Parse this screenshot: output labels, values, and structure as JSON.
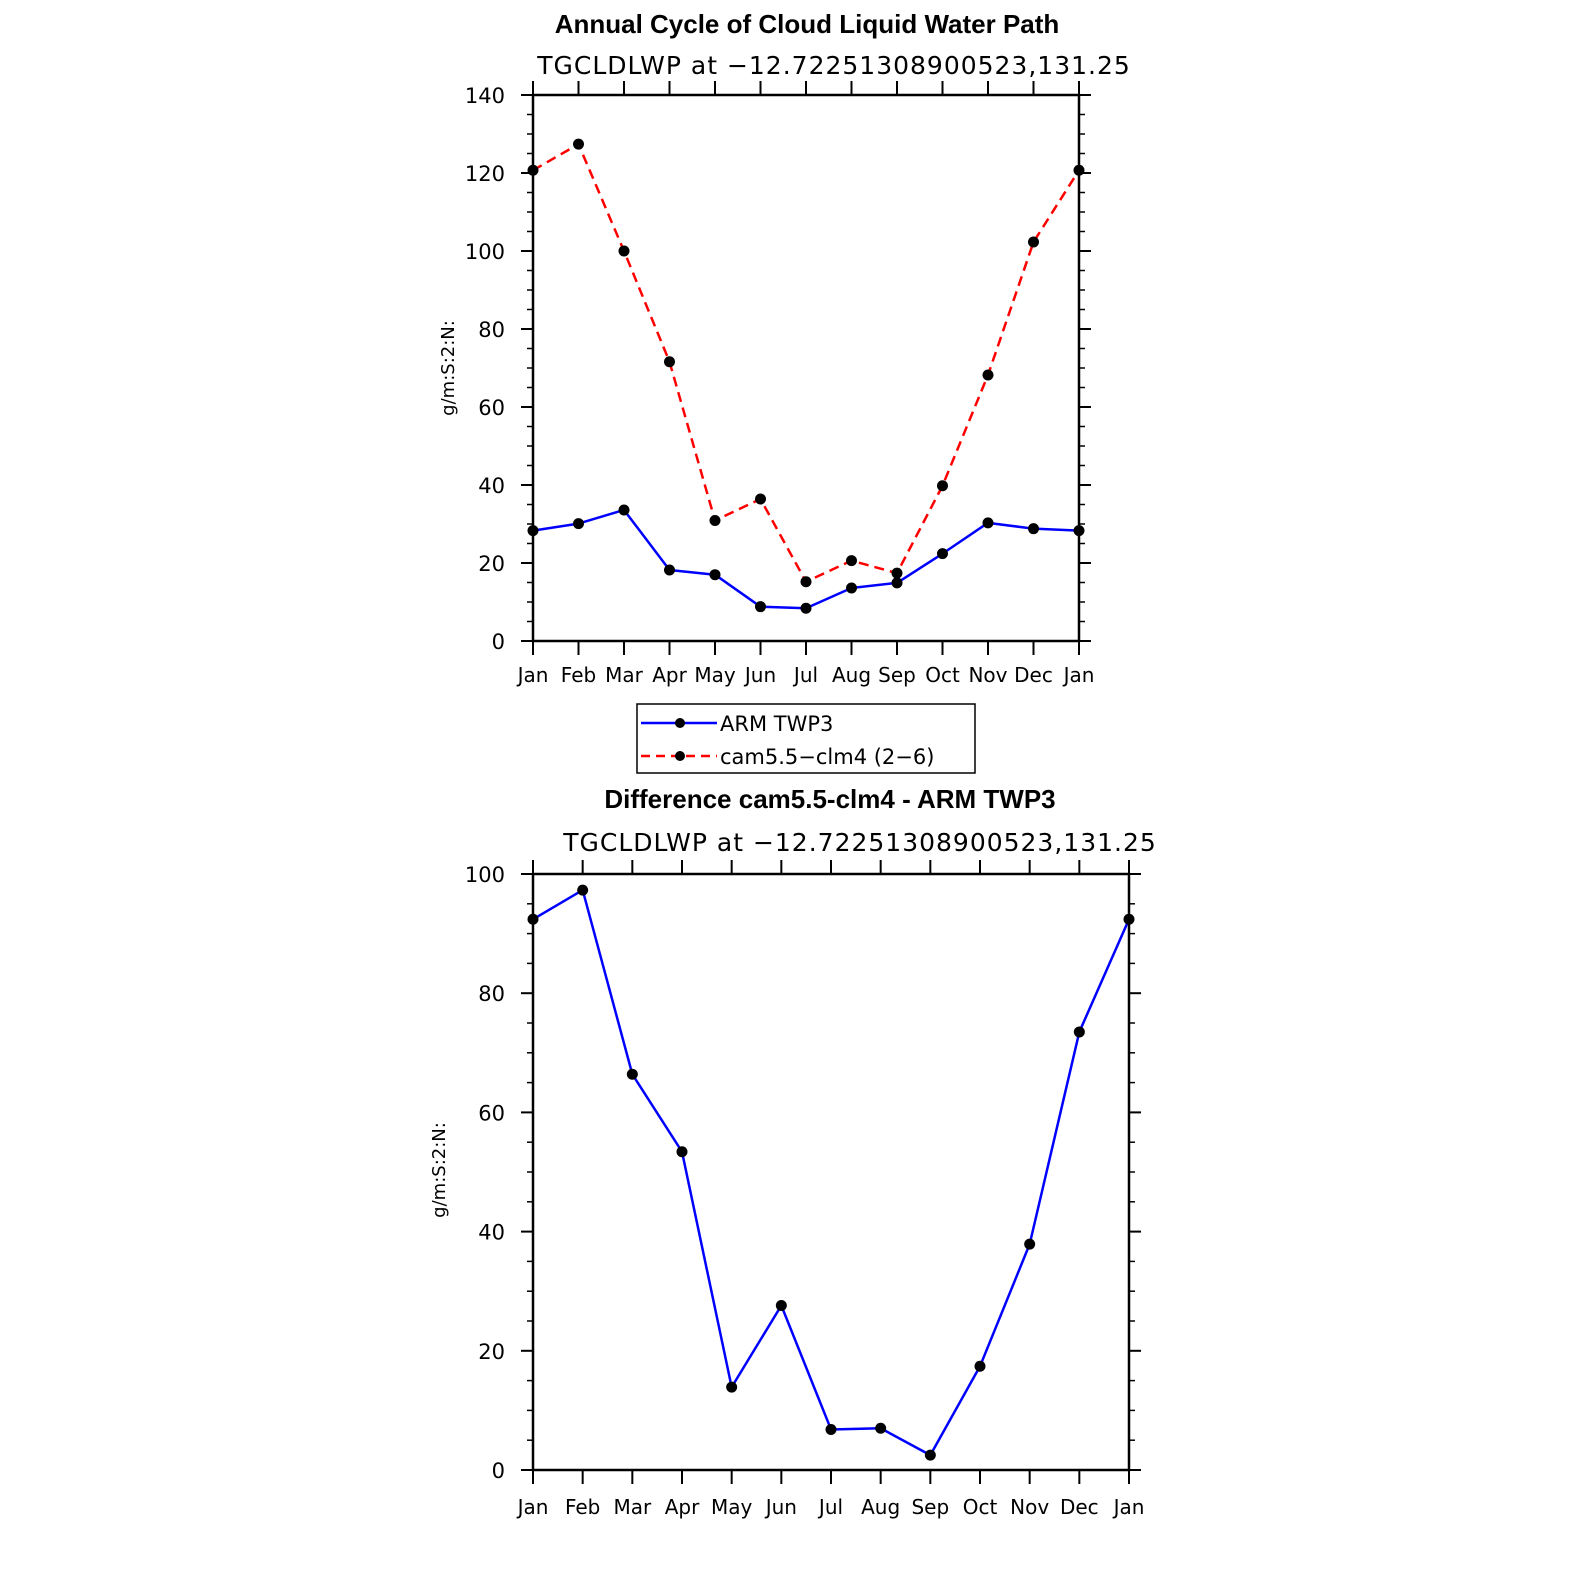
{
  "chart_data": [
    {
      "type": "line",
      "title": "Annual Cycle of Cloud Liquid Water Path",
      "subtitle": "TGCLDLWP  at  −12.72251308900523,131.25",
      "ylabel": "g/m:S:2:N:",
      "xlabel": "",
      "ylim": [
        0,
        140
      ],
      "yticks": [
        "0",
        "20",
        "40",
        "60",
        "80",
        "100",
        "120",
        "140"
      ],
      "categories": [
        "Jan",
        "Feb",
        "Mar",
        "Apr",
        "May",
        "Jun",
        "Jul",
        "Aug",
        "Sep",
        "Oct",
        "Nov",
        "Dec",
        "Jan"
      ],
      "series": [
        {
          "name": "ARM  TWP3",
          "color": "#0000ff",
          "dashed": false,
          "values": [
            28.3,
            30.1,
            33.6,
            18.2,
            17.0,
            8.8,
            8.4,
            13.6,
            14.9,
            22.4,
            30.3,
            28.8,
            28.3
          ]
        },
        {
          "name": "cam5.5−clm4 (2−6)",
          "color": "#ff0000",
          "dashed": true,
          "values": [
            120.7,
            127.4,
            100.0,
            71.6,
            30.9,
            36.4,
            15.2,
            20.6,
            17.4,
            39.8,
            68.2,
            102.3,
            120.7
          ]
        }
      ],
      "legend": "bottom"
    },
    {
      "type": "line",
      "title": "Difference cam5.5-clm4 - ARM TWP3",
      "subtitle": "TGCLDLWP  at  −12.72251308900523,131.25",
      "ylabel": "g/m:S:2:N:",
      "xlabel": "",
      "ylim": [
        0,
        100
      ],
      "yticks": [
        "0",
        "20",
        "40",
        "60",
        "80",
        "100"
      ],
      "categories": [
        "Jan",
        "Feb",
        "Mar",
        "Apr",
        "May",
        "Jun",
        "Jul",
        "Aug",
        "Sep",
        "Oct",
        "Nov",
        "Dec",
        "Jan"
      ],
      "series": [
        {
          "color": "#0000ff",
          "dashed": false,
          "values": [
            92.4,
            97.3,
            66.4,
            53.4,
            13.9,
            27.6,
            6.8,
            7.0,
            2.5,
            17.4,
            37.9,
            73.5,
            92.4
          ]
        }
      ]
    }
  ]
}
